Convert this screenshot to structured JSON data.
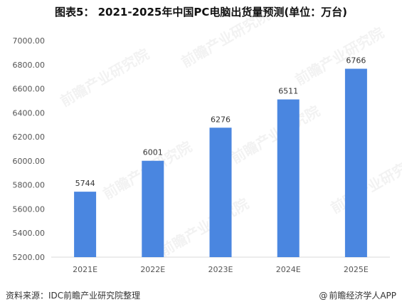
{
  "title": "图表5： 2021-2025年中国PC电脑出货量预测(单位：万台)",
  "source": "资料来源：IDC前瞻产业研究院整理",
  "credit": "前瞻经济学人APP",
  "credit_symbol": "@",
  "watermark": "前瞻产业研究院",
  "colors": {
    "bar": "#4a86e0",
    "axis": "#d9d9d9",
    "text": "#555555",
    "label": "#333333"
  },
  "chart_data": {
    "type": "bar",
    "title": "图表5： 2021-2025年中国PC电脑出货量预测(单位：万台)",
    "categories": [
      "2021E",
      "2022E",
      "2023E",
      "2024E",
      "2025E"
    ],
    "values": [
      5744,
      6001,
      6276,
      6511,
      6766
    ],
    "data_labels": [
      "5744",
      "6001",
      "6276",
      "6511",
      "6766"
    ],
    "yticks": [
      "5200.00",
      "5400.00",
      "5600.00",
      "5800.00",
      "6000.00",
      "6200.00",
      "6400.00",
      "6600.00",
      "6800.00",
      "7000.00"
    ],
    "ylim": [
      5200,
      7000
    ],
    "grid": false,
    "legend": "none"
  }
}
